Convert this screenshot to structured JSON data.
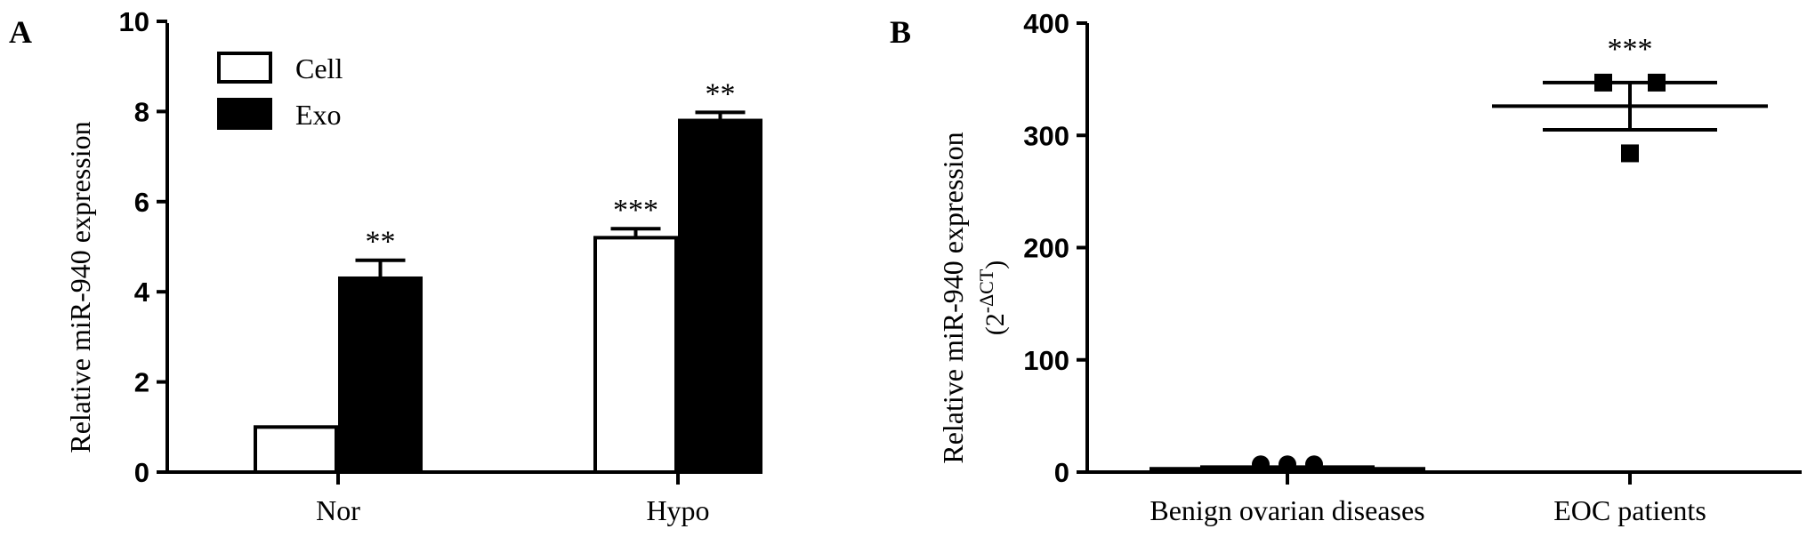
{
  "chart_data": [
    {
      "panel_label": "A",
      "type": "bar",
      "title": "",
      "xlabel": "",
      "ylabel": "Relative miR-940 expression",
      "categories": [
        "Nor",
        "Hypo"
      ],
      "ylim": [
        0,
        10
      ],
      "yticks": [
        "0",
        "2",
        "4",
        "6",
        "8",
        "10"
      ],
      "series": [
        {
          "name": "Cell",
          "values": [
            1.0,
            5.2
          ],
          "errors": [
            0,
            0.2
          ],
          "fill": "#ffffff",
          "stroke": "#000000"
        },
        {
          "name": "Exo",
          "values": [
            4.3,
            7.8
          ],
          "errors": [
            0.4,
            0.18
          ],
          "fill": "#000000",
          "stroke": "#000000"
        }
      ],
      "annotations": [
        {
          "category": "Nor",
          "series": "Exo",
          "text": "**"
        },
        {
          "category": "Hypo",
          "series": "Cell",
          "text": "***"
        },
        {
          "category": "Hypo",
          "series": "Exo",
          "text": "**"
        }
      ],
      "legend_placement": "top-left",
      "grid": false
    },
    {
      "panel_label": "B",
      "type": "scatter",
      "title": "",
      "xlabel": "",
      "ylabel": "Relative miR-940 expression",
      "ylabel_unit_prefix": "(2",
      "ylabel_unit_superscript": "-ΔCT",
      "ylabel_unit_suffix": ")",
      "categories": [
        "Benign ovarian diseases",
        "EOC patients"
      ],
      "ylim": [
        0,
        400
      ],
      "yticks": [
        "0",
        "100",
        "200",
        "300",
        "400"
      ],
      "series": [
        {
          "name": "Benign ovarian diseases",
          "marker": "circle",
          "points": [
            3,
            3,
            3
          ],
          "mean": 3,
          "sem_low": 1.5,
          "sem_high": 4.5
        },
        {
          "name": "EOC patients",
          "marker": "square",
          "points": [
            347,
            347,
            284
          ],
          "mean": 326,
          "sem_low": 305,
          "sem_high": 347
        }
      ],
      "annotations": [
        {
          "category": "EOC patients",
          "text": "***"
        }
      ],
      "grid": false
    }
  ]
}
